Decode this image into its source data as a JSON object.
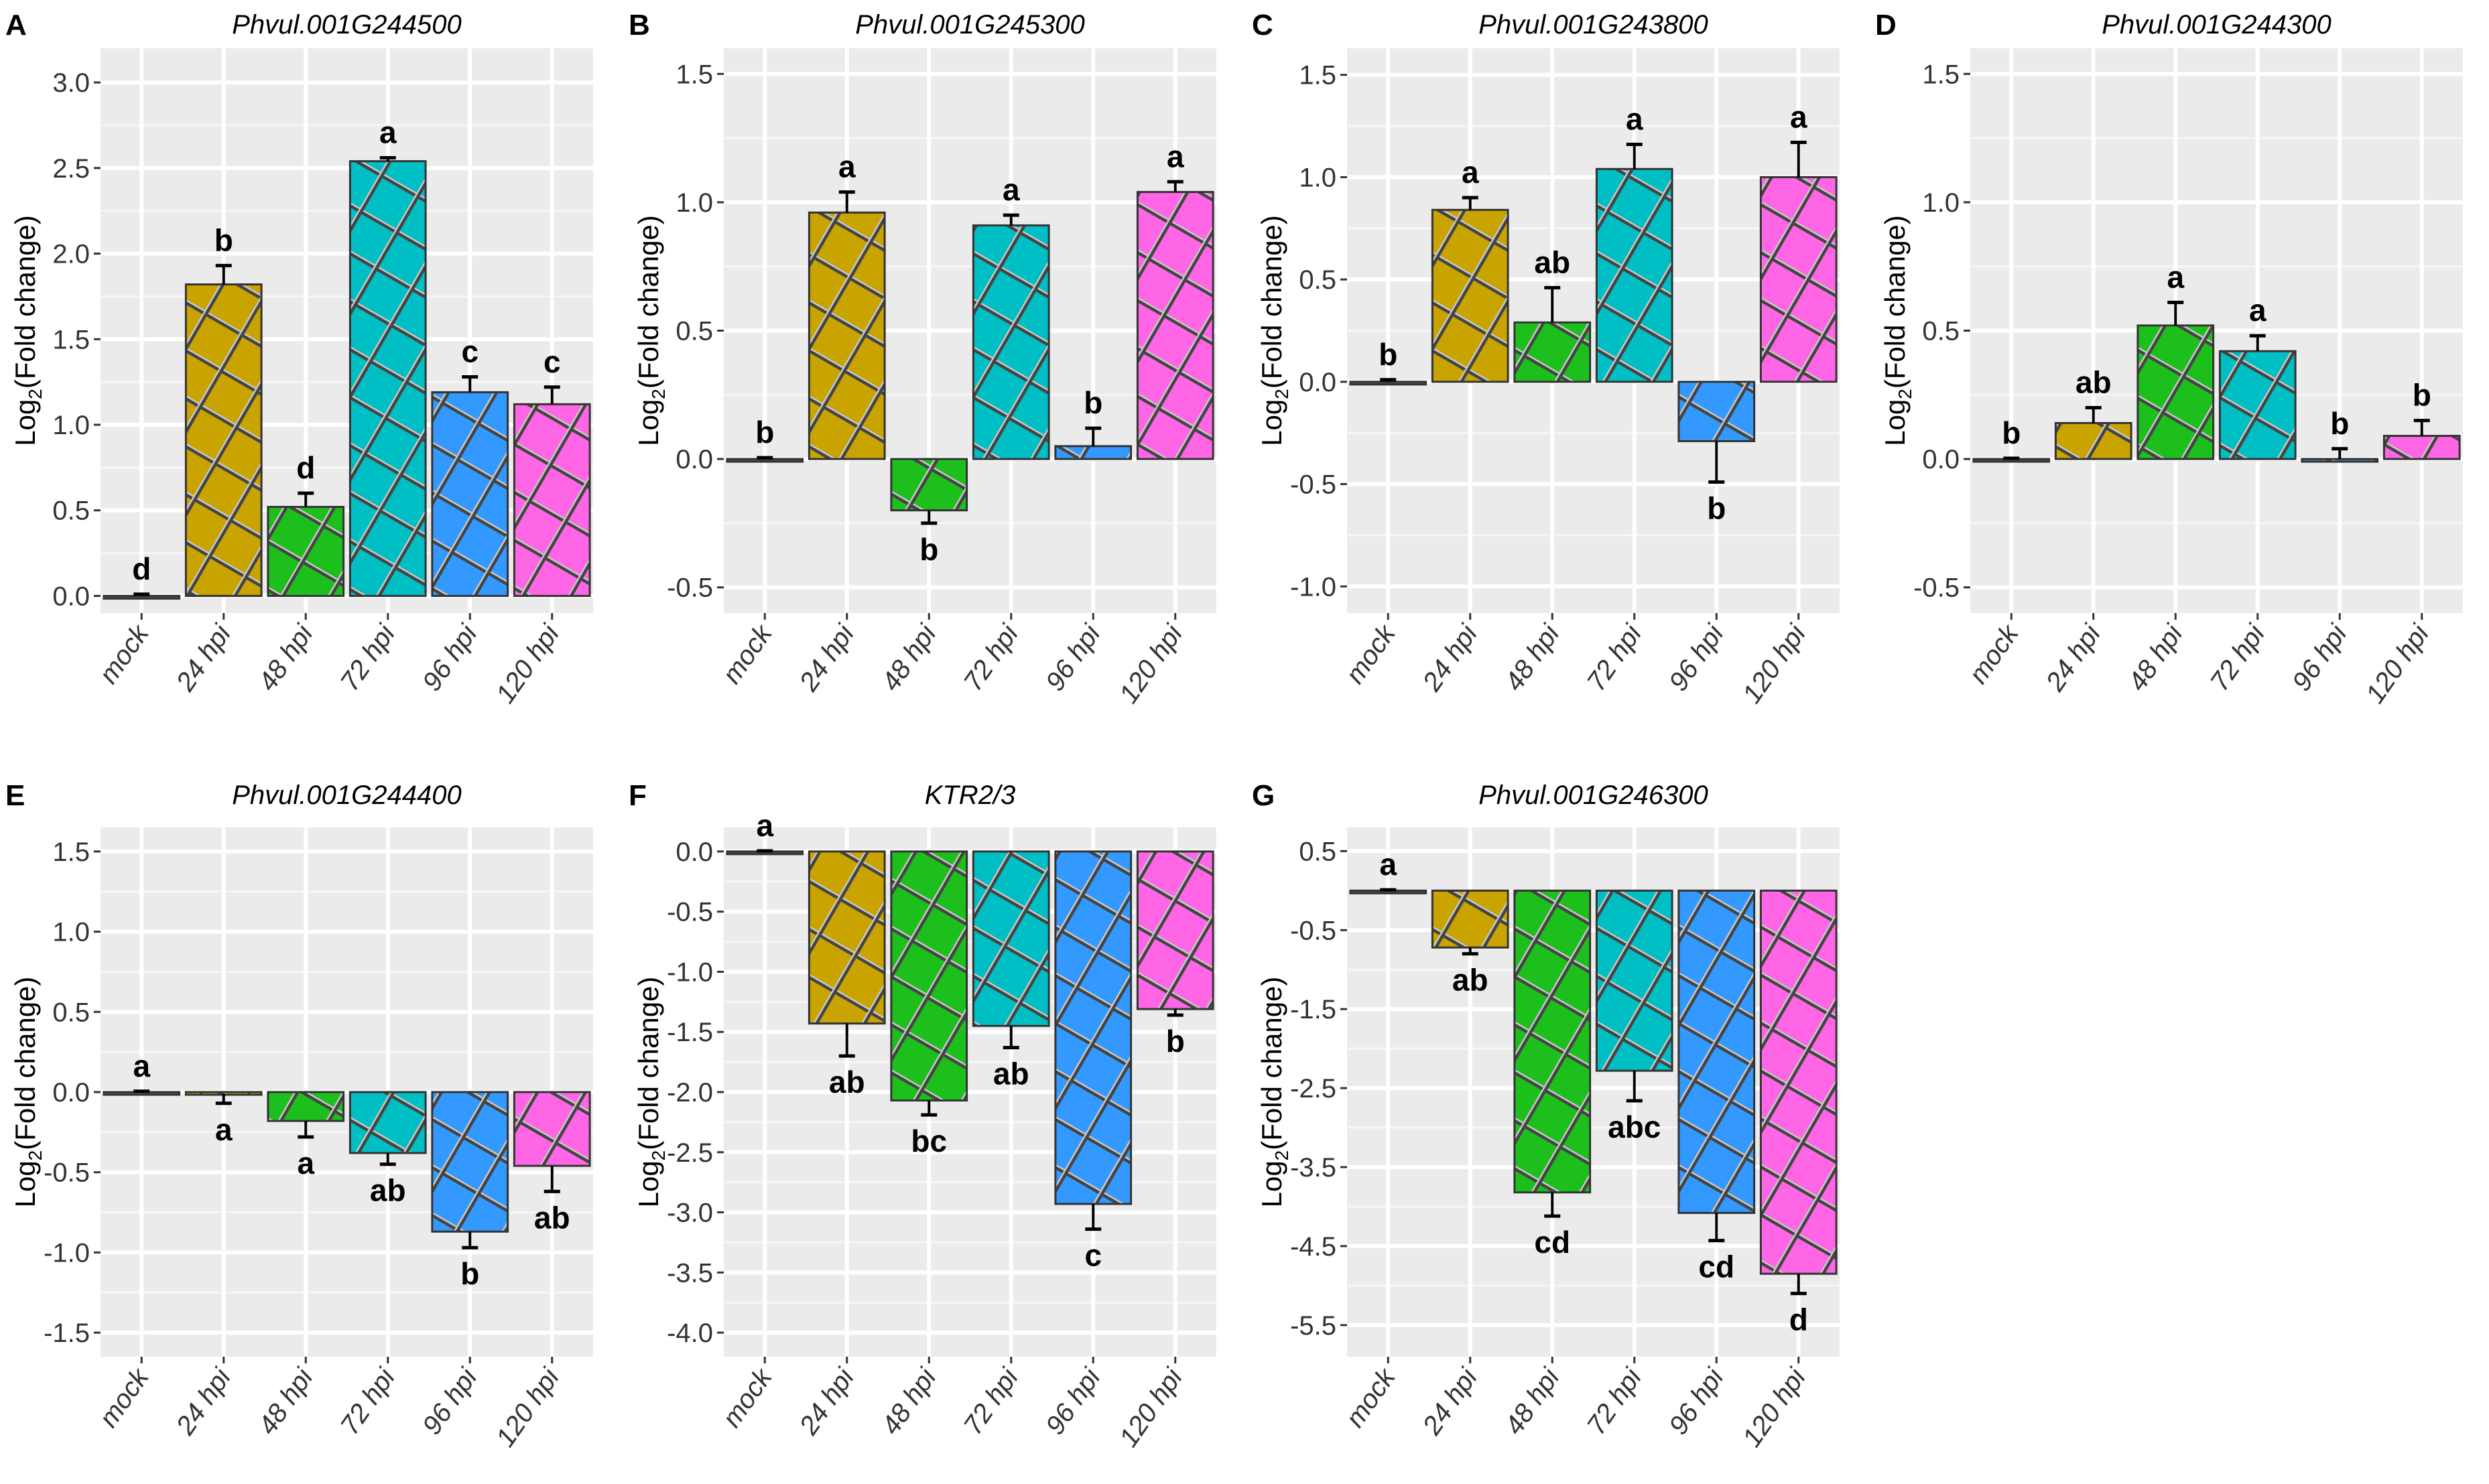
{
  "categories": [
    "mock",
    "24 hpi",
    "48 hpi",
    "72 hpi",
    "96 hpi",
    "120 hpi"
  ],
  "colors": {
    "mock": "#000000",
    "24 hpi": "#C9A400",
    "48 hpi": "#1DBF1D",
    "72 hpi": "#00BFC4",
    "96 hpi": "#3399FF",
    "120 hpi": "#FF66E6"
  },
  "ylabel": "Log2(Fold change)",
  "chart_data": [
    {
      "panel": "A",
      "type": "bar",
      "title": "Phvul.001G244500",
      "ylabel": "Log2(Fold change)",
      "ylim": [
        -0.1,
        3.2
      ],
      "ticks": [
        0.0,
        0.5,
        1.0,
        1.5,
        2.0,
        2.5,
        3.0
      ],
      "categories": [
        "mock",
        "24 hpi",
        "48 hpi",
        "72 hpi",
        "96 hpi",
        "120 hpi"
      ],
      "values": [
        0.0,
        1.82,
        0.52,
        2.54,
        1.19,
        1.12
      ],
      "errors": [
        0.01,
        0.11,
        0.08,
        0.02,
        0.09,
        0.1
      ],
      "letters": [
        "d",
        "b",
        "d",
        "a",
        "c",
        "c"
      ],
      "grid": true
    },
    {
      "panel": "B",
      "type": "bar",
      "title": "Phvul.001G245300",
      "ylabel": "Log2(Fold change)",
      "ylim": [
        -0.6,
        1.6
      ],
      "ticks": [
        -0.5,
        0.0,
        0.5,
        1.0,
        1.5
      ],
      "categories": [
        "mock",
        "24 hpi",
        "48 hpi",
        "72 hpi",
        "96 hpi",
        "120 hpi"
      ],
      "values": [
        0.0,
        0.96,
        -0.2,
        0.91,
        0.05,
        1.04
      ],
      "errors": [
        0.005,
        0.08,
        0.05,
        0.04,
        0.07,
        0.04
      ],
      "letters": [
        "b",
        "a",
        "b",
        "a",
        "b",
        "a"
      ],
      "grid": true
    },
    {
      "panel": "C",
      "type": "bar",
      "title": "Phvul.001G243800",
      "ylabel": "Log2(Fold change)",
      "ylim": [
        -1.13,
        1.63
      ],
      "ticks": [
        -1.0,
        -0.5,
        0.0,
        0.5,
        1.0,
        1.5
      ],
      "categories": [
        "mock",
        "24 hpi",
        "48 hpi",
        "72 hpi",
        "96 hpi",
        "120 hpi"
      ],
      "values": [
        0.0,
        0.84,
        0.29,
        1.04,
        -0.29,
        1.0
      ],
      "errors": [
        0.01,
        0.06,
        0.17,
        0.12,
        0.2,
        0.17
      ],
      "letters": [
        "b",
        "a",
        "ab",
        "a",
        "b",
        "a"
      ],
      "grid": true
    },
    {
      "panel": "D",
      "type": "bar",
      "title": "Phvul.001G244300",
      "ylabel": "Log2(Fold change)",
      "ylim": [
        -0.6,
        1.6
      ],
      "ticks": [
        -0.5,
        0.0,
        0.5,
        1.0,
        1.5
      ],
      "categories": [
        "mock",
        "24 hpi",
        "48 hpi",
        "72 hpi",
        "96 hpi",
        "120 hpi"
      ],
      "values": [
        0.0,
        0.14,
        0.52,
        0.42,
        0.0,
        0.09
      ],
      "errors": [
        0.003,
        0.06,
        0.09,
        0.06,
        0.04,
        0.06
      ],
      "letters": [
        "b",
        "ab",
        "a",
        "a",
        "b",
        "b"
      ],
      "grid": true
    },
    {
      "panel": "E",
      "type": "bar",
      "title": "Phvul.001G244400",
      "ylabel": "Log2(Fold change)",
      "ylim": [
        -1.65,
        1.65
      ],
      "ticks": [
        -1.5,
        -1.0,
        -0.5,
        0.0,
        0.5,
        1.0,
        1.5
      ],
      "categories": [
        "mock",
        "24 hpi",
        "48 hpi",
        "72 hpi",
        "96 hpi",
        "120 hpi"
      ],
      "values": [
        0.0,
        -0.01,
        -0.18,
        -0.38,
        -0.87,
        -0.46
      ],
      "errors": [
        0.005,
        0.06,
        0.1,
        0.07,
        0.1,
        0.16
      ],
      "letters": [
        "a",
        "a",
        "a",
        "ab",
        "b",
        "ab"
      ],
      "grid": true
    },
    {
      "panel": "F",
      "type": "bar",
      "title": "KTR2/3",
      "ylabel": "Log2(Fold change)",
      "ylim": [
        -4.2,
        0.2
      ],
      "ticks": [
        -4.0,
        -3.5,
        -3.0,
        -2.5,
        -2.0,
        -1.5,
        -1.0,
        -0.5,
        0.0
      ],
      "categories": [
        "mock",
        "24 hpi",
        "48 hpi",
        "72 hpi",
        "96 hpi",
        "120 hpi"
      ],
      "values": [
        0.0,
        -1.43,
        -2.07,
        -1.45,
        -2.93,
        -1.31
      ],
      "errors": [
        0.005,
        0.27,
        0.12,
        0.18,
        0.21,
        0.05
      ],
      "letters": [
        "a",
        "ab",
        "bc",
        "ab",
        "c",
        "b"
      ],
      "grid": true
    },
    {
      "panel": "G",
      "type": "bar",
      "title": "Phvul.001G246300",
      "ylabel": "Log2(Fold change)",
      "ylim": [
        -5.9,
        0.8
      ],
      "ticks": [
        -5.5,
        -4.5,
        -3.5,
        -2.5,
        -1.5,
        -0.5,
        0.5
      ],
      "categories": [
        "mock",
        "24 hpi",
        "48 hpi",
        "72 hpi",
        "96 hpi",
        "120 hpi"
      ],
      "values": [
        0.0,
        -0.72,
        -3.82,
        -2.28,
        -4.08,
        -4.85
      ],
      "errors": [
        0.01,
        0.08,
        0.3,
        0.38,
        0.35,
        0.25
      ],
      "letters": [
        "a",
        "ab",
        "cd",
        "abc",
        "cd",
        "d"
      ],
      "grid": true
    }
  ]
}
